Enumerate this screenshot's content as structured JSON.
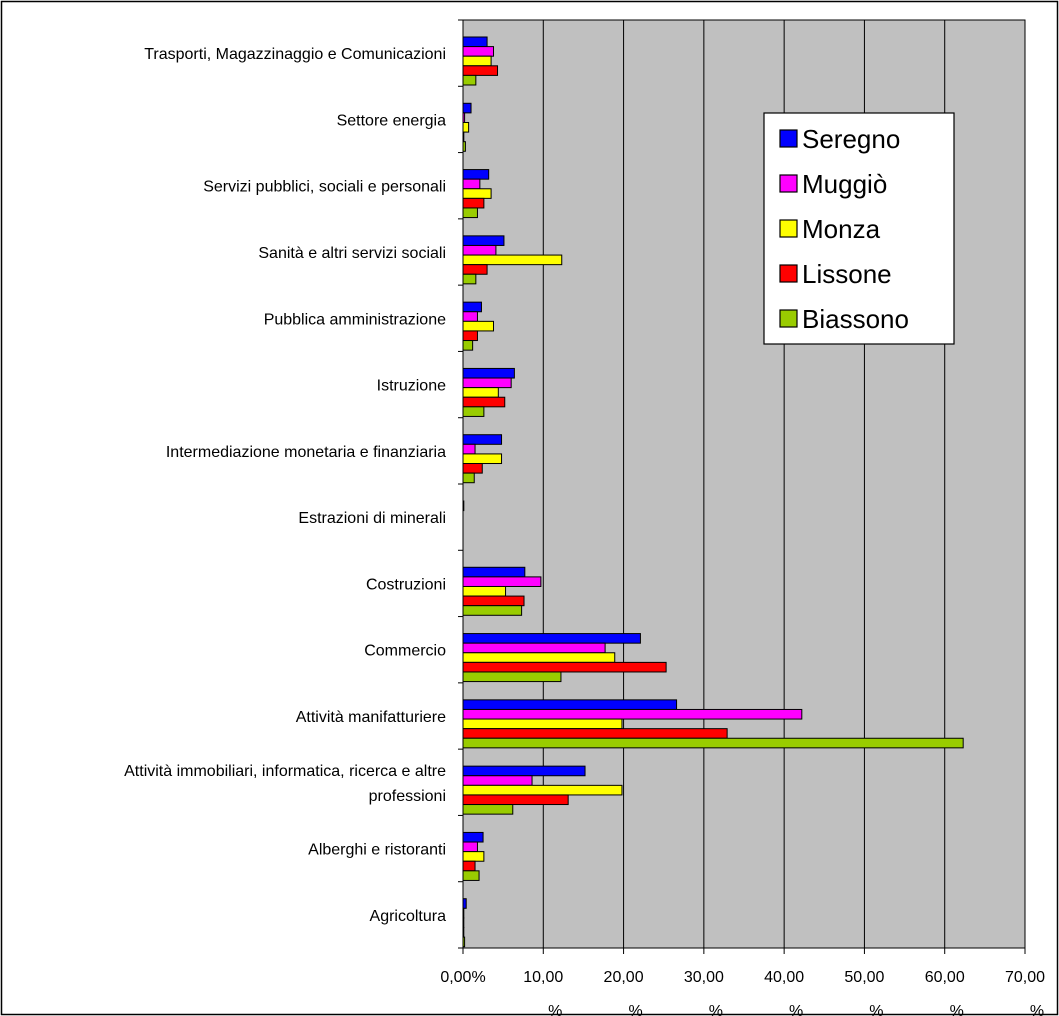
{
  "chart_data": {
    "type": "bar",
    "orientation": "horizontal",
    "categories": [
      "Agricoltura",
      "Alberghi e ristoranti",
      "Attività immobiliari, informatica, ricerca e altre professioni",
      "Attività manifatturiere",
      "Commercio",
      "Costruzioni",
      "Estrazioni di minerali",
      "Intermediazione monetaria e finanziaria",
      "Istruzione",
      "Pubblica amministrazione",
      "Sanità e altri servizi sociali",
      "Servizi pubblici, sociali e personali",
      "Settore energia",
      "Trasporti, Magazzinaggio e Comunicazioni"
    ],
    "category_label_lines": [
      [
        "Agricoltura"
      ],
      [
        "Alberghi e ristoranti"
      ],
      [
        "Attività immobiliari, informatica, ricerca e altre",
        "professioni"
      ],
      [
        "Attività manifatturiere"
      ],
      [
        "Commercio"
      ],
      [
        "Costruzioni"
      ],
      [
        "Estrazioni di minerali"
      ],
      [
        "Intermediazione monetaria e finanziaria"
      ],
      [
        "Istruzione"
      ],
      [
        "Pubblica amministrazione"
      ],
      [
        "Sanità e altri servizi sociali"
      ],
      [
        "Servizi pubblici, sociali e personali"
      ],
      [
        "Settore energia"
      ],
      [
        "Trasporti, Magazzinaggio e Comunicazioni"
      ]
    ],
    "series": [
      {
        "name": "Seregno",
        "color": "#0000FF",
        "values": [
          0.4,
          2.5,
          15.2,
          26.6,
          22.1,
          7.7,
          0.1,
          4.8,
          6.4,
          2.3,
          5.1,
          3.2,
          1.0,
          3.0
        ]
      },
      {
        "name": "Muggiò",
        "color": "#FF00FF",
        "values": [
          0.1,
          1.8,
          8.6,
          42.2,
          17.7,
          9.7,
          0.0,
          1.5,
          6.0,
          1.8,
          4.1,
          2.1,
          0.2,
          3.8
        ]
      },
      {
        "name": "Monza",
        "color": "#FFFF00",
        "values": [
          0.1,
          2.6,
          19.8,
          19.8,
          18.9,
          5.3,
          0.0,
          4.8,
          4.4,
          3.8,
          12.3,
          3.5,
          0.7,
          3.5
        ]
      },
      {
        "name": "Lissone",
        "color": "#FF0000",
        "values": [
          0.1,
          1.5,
          13.1,
          32.9,
          25.3,
          7.6,
          0.0,
          2.4,
          5.2,
          1.8,
          3.0,
          2.6,
          0.1,
          4.3
        ]
      },
      {
        "name": "Biassono",
        "color": "#99CC00",
        "values": [
          0.2,
          2.0,
          6.2,
          62.3,
          12.2,
          7.3,
          0.0,
          1.4,
          2.6,
          1.2,
          1.6,
          1.8,
          0.3,
          1.6
        ]
      }
    ],
    "xlim": [
      0,
      70
    ],
    "xticks": [
      0,
      10,
      20,
      30,
      40,
      50,
      60,
      70
    ],
    "xtick_labels": [
      "0,00%",
      "10,00",
      "20,00",
      "30,00",
      "40,00",
      "50,00",
      "60,00",
      "70,00"
    ],
    "xtick_suffix": [
      "",
      "%",
      "%",
      "%",
      "%",
      "%",
      "%",
      "%"
    ],
    "gridlines": true,
    "legend_position": "top-right",
    "plot_background": "#C0C0C0"
  }
}
